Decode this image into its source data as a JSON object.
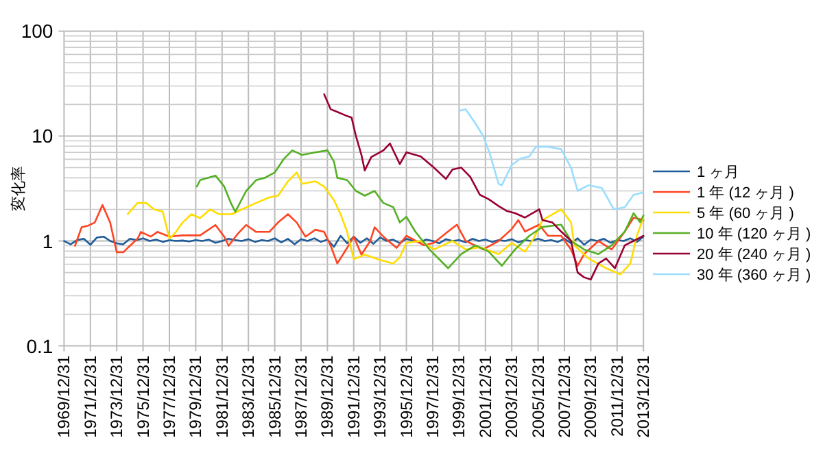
{
  "chart_data": {
    "type": "line",
    "ylabel": "変化率",
    "log": true,
    "grid": true,
    "legend": "right",
    "xlim": [
      "1969-12-31",
      "2013-12-31"
    ],
    "ylim": [
      0.1,
      100
    ],
    "yticks": [
      0.1,
      1,
      10,
      100
    ],
    "xticks": [
      {
        "value": "1969-12-31",
        "label": "1969/12/31"
      },
      {
        "value": "1971-12-31",
        "label": "1971/12/31"
      },
      {
        "value": "1973-12-31",
        "label": "1973/12/31"
      },
      {
        "value": "1975-12-31",
        "label": "1975/12/31"
      },
      {
        "value": "1977-12-31",
        "label": "1977/12/31"
      },
      {
        "value": "1979-12-31",
        "label": "1979/12/31"
      },
      {
        "value": "1981-12-31",
        "label": "1981/12/31"
      },
      {
        "value": "1983-12-31",
        "label": "1983/12/31"
      },
      {
        "value": "1985-12-31",
        "label": "1985/12/31"
      },
      {
        "value": "1987-12-31",
        "label": "1987/12/31"
      },
      {
        "value": "1989-12-31",
        "label": "1989/12/31"
      },
      {
        "value": "1991-12-31",
        "label": "1991/12/31"
      },
      {
        "value": "1993-12-31",
        "label": "1993/12/31"
      },
      {
        "value": "1995-12-31",
        "label": "1995/12/31"
      },
      {
        "value": "1997-12-31",
        "label": "1997/12/31"
      },
      {
        "value": "1999-12-31",
        "label": "1999/12/31"
      },
      {
        "value": "2001-12-31",
        "label": "2001/12/31"
      },
      {
        "value": "2003-12-31",
        "label": "2003/12/31"
      },
      {
        "value": "2005-12-31",
        "label": "2005/12/31"
      },
      {
        "value": "2007-12-31",
        "label": "2007/12/31"
      },
      {
        "value": "2009-12-31",
        "label": "2009/12/31"
      },
      {
        "value": "2011-12-31",
        "label": "2011/12/31"
      },
      {
        "value": "2013-12-31",
        "label": "2013/12/31"
      }
    ],
    "series": [
      {
        "name": "1 ヶ月",
        "color": "#1f5c99",
        "x": [
          "1970-01",
          "1970-07",
          "1971-01",
          "1971-07",
          "1972-01",
          "1972-07",
          "1973-01",
          "1973-07",
          "1974-01",
          "1974-07",
          "1975-01",
          "1975-07",
          "1976-01",
          "1976-07",
          "1977-01",
          "1977-07",
          "1978-01",
          "1978-07",
          "1979-01",
          "1979-07",
          "1980-01",
          "1980-07",
          "1981-01",
          "1981-07",
          "1982-01",
          "1982-07",
          "1983-01",
          "1983-07",
          "1984-01",
          "1984-07",
          "1985-01",
          "1985-07",
          "1986-01",
          "1986-07",
          "1987-01",
          "1987-07",
          "1988-01",
          "1988-07",
          "1989-01",
          "1989-07",
          "1990-01",
          "1990-07",
          "1991-01",
          "1991-07",
          "1992-01",
          "1992-07",
          "1993-01",
          "1993-07",
          "1994-01",
          "1994-07",
          "1995-01",
          "1995-07",
          "1996-01",
          "1996-07",
          "1997-01",
          "1997-07",
          "1998-01",
          "1998-07",
          "1999-01",
          "1999-07",
          "2000-01",
          "2000-07",
          "2001-01",
          "2001-07",
          "2002-01",
          "2002-07",
          "2003-01",
          "2003-07",
          "2004-01",
          "2004-07",
          "2005-01",
          "2005-07",
          "2006-01",
          "2006-07",
          "2007-01",
          "2007-07",
          "2008-01",
          "2008-07",
          "2009-01",
          "2009-07",
          "2010-01",
          "2010-07",
          "2011-01",
          "2011-07",
          "2012-01",
          "2012-07",
          "2013-01",
          "2013-07",
          "2013-12-31"
        ],
        "values": [
          1.0,
          0.93,
          1.02,
          1.05,
          0.92,
          1.08,
          1.1,
          1.0,
          0.95,
          0.93,
          1.05,
          1.02,
          1.06,
          1.0,
          1.03,
          0.98,
          1.02,
          1.0,
          1.01,
          0.99,
          1.02,
          1.0,
          1.03,
          0.96,
          1.0,
          1.05,
          1.02,
          1.0,
          1.04,
          0.98,
          1.02,
          1.0,
          1.06,
          0.97,
          1.05,
          0.93,
          1.04,
          1.0,
          1.06,
          0.98,
          1.03,
          0.88,
          1.12,
          0.95,
          1.1,
          0.96,
          1.06,
          0.94,
          1.08,
          1.0,
          1.03,
          0.95,
          1.05,
          1.0,
          0.97,
          1.03,
          1.0,
          0.95,
          1.04,
          1.0,
          1.02,
          0.97,
          1.05,
          1.0,
          1.03,
          0.98,
          1.02,
          1.0,
          1.04,
          0.97,
          1.02,
          1.0,
          1.05,
          1.0,
          1.02,
          0.98,
          1.05,
          0.95,
          1.06,
          0.92,
          1.03,
          1.0,
          1.05,
          0.96,
          1.02,
          1.0,
          1.06,
          0.98,
          1.1
        ]
      },
      {
        "name": "1 年 (12 ヶ月 )",
        "color": "#ff4422",
        "x": [
          "1970-11",
          "1971-05",
          "1971-11",
          "1972-05",
          "1972-12",
          "1973-07",
          "1974-01",
          "1974-07",
          "1974-11",
          "1975-08",
          "1975-11",
          "1976-08",
          "1977-02",
          "1978-01",
          "1979-01",
          "1980-05",
          "1981-07",
          "1982-03",
          "1982-07",
          "1983-03",
          "1983-11",
          "1984-08",
          "1985-08",
          "1986-04",
          "1987-01",
          "1987-09",
          "1988-05",
          "1989-02",
          "1989-10",
          "1990-04",
          "1990-10",
          "1991-07",
          "1992-01",
          "1992-08",
          "1993-04",
          "1993-08",
          "1994-04",
          "1995-04",
          "1996-01",
          "1997-05",
          "1998-02",
          "1999-03",
          "1999-11",
          "2000-07",
          "2001-11",
          "2003-01",
          "2004-01",
          "2004-07",
          "2005-01",
          "2006-02",
          "2006-10",
          "2007-10",
          "2008-07",
          "2009-01",
          "2009-07",
          "2010-08",
          "2011-08",
          "2012-08",
          "2013-04",
          "2013-12-31"
        ],
        "values": [
          0.9,
          1.35,
          1.4,
          1.5,
          2.2,
          1.5,
          0.78,
          0.78,
          0.86,
          1.05,
          1.22,
          1.1,
          1.22,
          1.1,
          1.13,
          1.13,
          1.42,
          1.1,
          0.9,
          1.16,
          1.42,
          1.22,
          1.22,
          1.5,
          1.8,
          1.5,
          1.1,
          1.28,
          1.22,
          0.9,
          0.61,
          0.86,
          1.1,
          0.74,
          1.0,
          1.35,
          1.1,
          0.86,
          1.12,
          0.91,
          0.96,
          1.23,
          1.43,
          1.0,
          0.83,
          1.0,
          1.3,
          1.58,
          1.23,
          1.43,
          1.12,
          1.12,
          0.83,
          0.58,
          0.75,
          1.0,
          0.83,
          1.23,
          1.67,
          1.58
        ]
      },
      {
        "name": "5 年 (60 ヶ月 )",
        "color": "#ffdd00",
        "x": [
          "1974-11",
          "1975-08",
          "1976-04",
          "1976-11",
          "1977-07",
          "1978-01",
          "1978-07",
          "1979-01",
          "1979-09",
          "1980-05",
          "1981-02",
          "1981-10",
          "1982-10",
          "1983-07",
          "1984-08",
          "1985-08",
          "1986-04",
          "1987-01",
          "1987-09",
          "1988-02",
          "1989-02",
          "1989-10",
          "1990-07",
          "1991-01",
          "1991-07",
          "1992-01",
          "1992-11",
          "1993-11",
          "1995-01",
          "1995-07",
          "1996-01",
          "1997-02",
          "1998-02",
          "1999-07",
          "2000-07",
          "2001-08",
          "2003-01",
          "2004-01",
          "2005-01",
          "2005-09",
          "2006-05",
          "2007-10",
          "2008-07",
          "2008-10",
          "2009-11",
          "2011-03",
          "2012-04",
          "2013-01",
          "2013-07",
          "2013-12-31"
        ],
        "values": [
          1.8,
          2.3,
          2.3,
          2.0,
          1.9,
          1.05,
          1.22,
          1.5,
          1.8,
          1.65,
          2.0,
          1.8,
          1.8,
          2.0,
          2.3,
          2.6,
          2.7,
          3.7,
          4.5,
          3.5,
          3.7,
          3.3,
          2.45,
          1.8,
          1.22,
          0.67,
          0.74,
          0.67,
          0.61,
          0.7,
          0.96,
          1.0,
          0.83,
          1.0,
          0.83,
          0.87,
          0.75,
          0.96,
          0.79,
          1.06,
          1.58,
          2.0,
          1.5,
          0.91,
          0.68,
          0.55,
          0.48,
          0.61,
          1.12,
          1.67
        ]
      },
      {
        "name": "10 年 (120 ヶ月 )",
        "color": "#55b025",
        "x": [
          "1980-02",
          "1980-05",
          "1981-07",
          "1982-03",
          "1982-09",
          "1983-01",
          "1983-11",
          "1984-08",
          "1985-04",
          "1986-01",
          "1986-09",
          "1987-05",
          "1988-02",
          "1989-02",
          "1990-01",
          "1990-07",
          "1990-10",
          "1991-07",
          "1992-03",
          "1992-11",
          "1993-08",
          "1994-04",
          "1995-01",
          "1995-07",
          "1996-01",
          "1996-09",
          "1997-10",
          "1999-03",
          "2000-03",
          "2001-04",
          "2002-04",
          "2003-04",
          "2004-04",
          "2005-05",
          "2006-05",
          "2007-10",
          "2008-07",
          "2009-07",
          "2010-08",
          "2011-08",
          "2012-08",
          "2013-04",
          "2013-10",
          "2013-12-31"
        ],
        "values": [
          3.3,
          3.8,
          4.2,
          3.3,
          2.3,
          1.9,
          3.0,
          3.8,
          4.0,
          4.5,
          6.0,
          7.3,
          6.6,
          7.0,
          7.3,
          5.7,
          4.0,
          3.8,
          3.0,
          2.7,
          3.0,
          2.3,
          2.1,
          1.5,
          1.7,
          1.23,
          0.83,
          0.55,
          0.75,
          0.91,
          0.79,
          0.58,
          0.83,
          1.12,
          1.36,
          1.43,
          1.0,
          0.83,
          0.75,
          0.91,
          1.23,
          1.84,
          1.51,
          1.75
        ]
      },
      {
        "name": "20 年 (240 ヶ月 )",
        "color": "#990033",
        "x": [
          "1989-10",
          "1990-04",
          "1990-10",
          "1991-07",
          "1991-11",
          "1992-03",
          "1992-08",
          "1992-11",
          "1993-05",
          "1994-04",
          "1994-10",
          "1995-07",
          "1996-01",
          "1997-02",
          "1998-02",
          "1999-01",
          "1999-07",
          "2000-03",
          "2000-11",
          "2001-08",
          "2002-04",
          "2003-01",
          "2003-08",
          "2004-04",
          "2005-01",
          "2006-02",
          "2006-05",
          "2007-02",
          "2007-10",
          "2008-07",
          "2009-01",
          "2009-07",
          "2010-01",
          "2010-08",
          "2011-03",
          "2011-11",
          "2012-08",
          "2013-04",
          "2013-12-31"
        ],
        "values": [
          25,
          18,
          17,
          15.5,
          15,
          10,
          6.6,
          4.7,
          6.3,
          7.3,
          8.5,
          5.4,
          7.0,
          6.4,
          5.0,
          3.9,
          4.8,
          5.0,
          4.1,
          2.75,
          2.5,
          2.15,
          1.94,
          1.84,
          1.67,
          2.0,
          1.58,
          1.5,
          1.23,
          1.0,
          0.5,
          0.45,
          0.43,
          0.61,
          0.68,
          0.55,
          0.91,
          1.0,
          1.12
        ]
      },
      {
        "name": "30 年 (360 ヶ月 )",
        "color": "#99ddff",
        "x": [
          "2000-02",
          "2000-07",
          "2001-03",
          "2001-11",
          "2002-05",
          "2003-01",
          "2003-04",
          "2004-01",
          "2004-09",
          "2005-05",
          "2005-11",
          "2006-10",
          "2007-10",
          "2008-07",
          "2009-01",
          "2009-11",
          "2010-11",
          "2011-10",
          "2012-08",
          "2013-04",
          "2013-12-31"
        ],
        "values": [
          17.5,
          18,
          13.6,
          10,
          6.8,
          3.5,
          3.4,
          5.3,
          6.1,
          6.4,
          7.9,
          7.9,
          7.5,
          5.0,
          3.0,
          3.4,
          3.2,
          2.0,
          2.1,
          2.75,
          2.9
        ]
      }
    ]
  }
}
